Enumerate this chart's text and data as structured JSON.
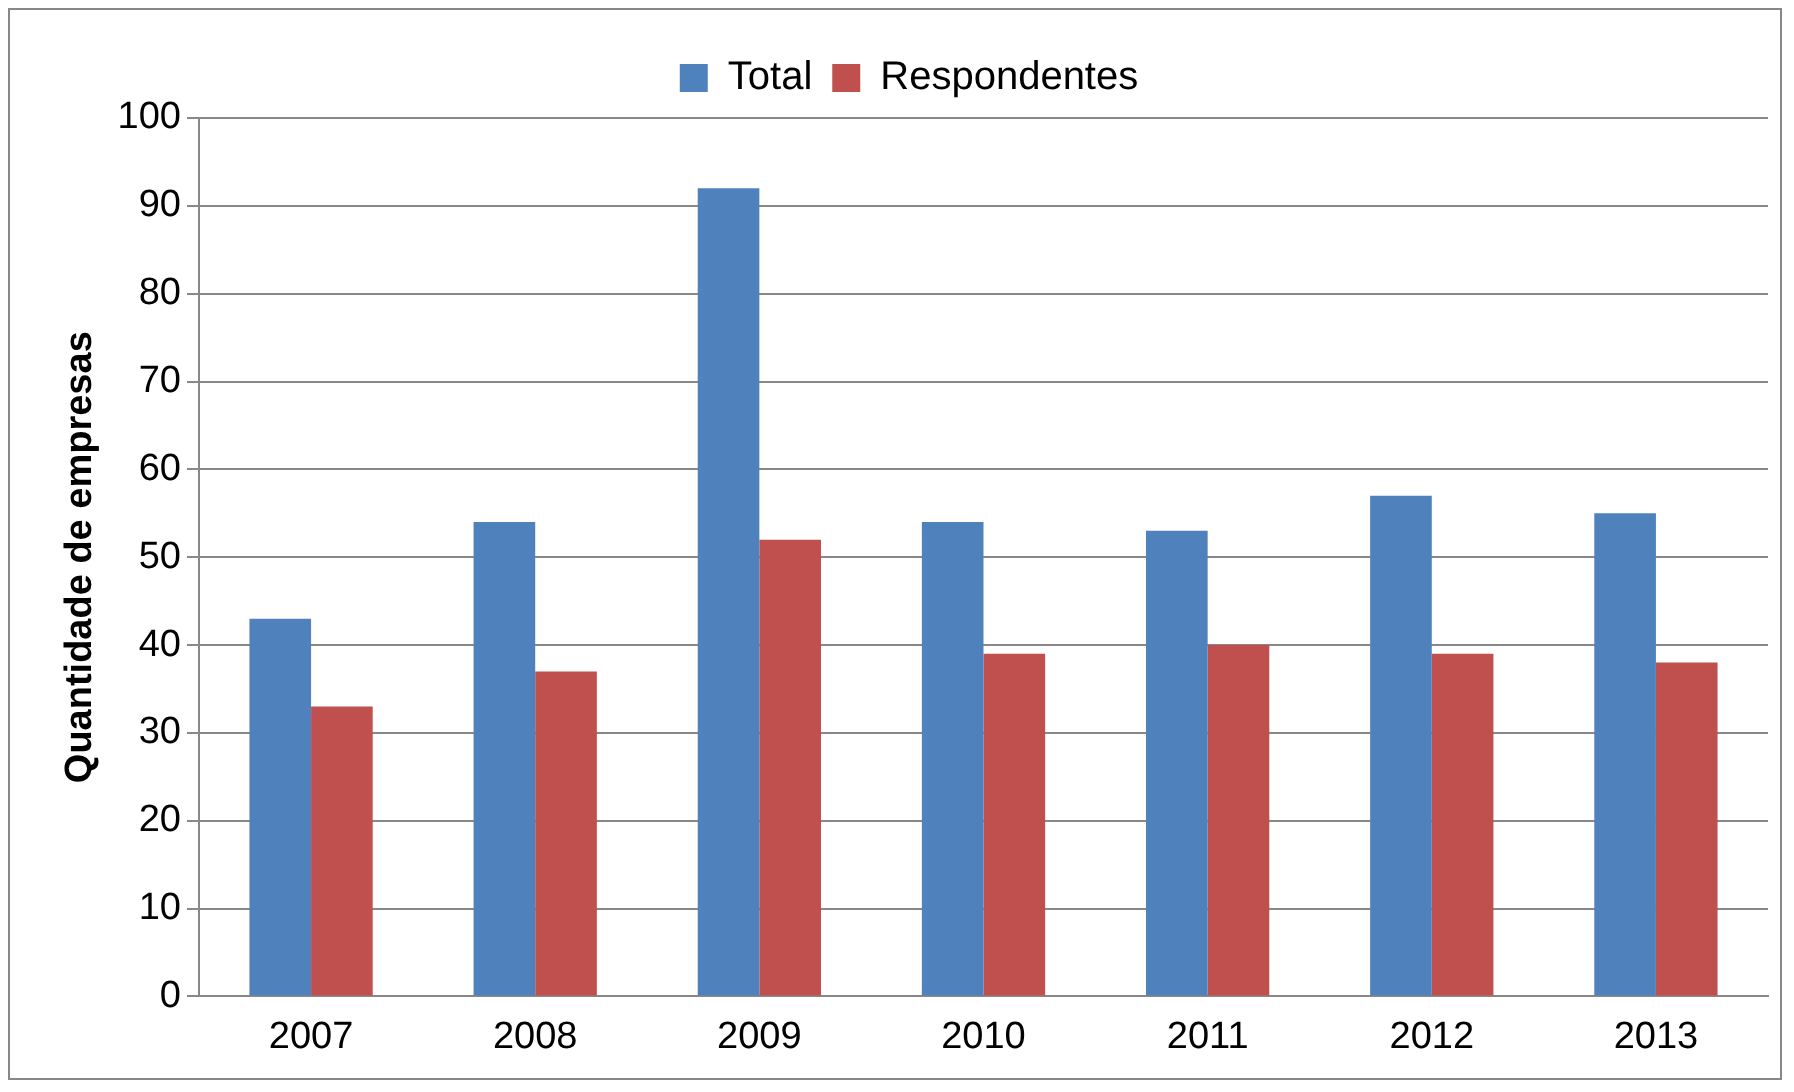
{
  "chart_data": {
    "type": "bar",
    "ylabel": "Quantidade de empresas",
    "categories": [
      "2007",
      "2008",
      "2009",
      "2010",
      "2011",
      "2012",
      "2013"
    ],
    "series": [
      {
        "name": "Total",
        "color": "#4f81bd",
        "values": [
          43,
          54,
          92,
          54,
          53,
          57,
          55
        ]
      },
      {
        "name": "Respondentes",
        "color": "#c0504d",
        "values": [
          33,
          37,
          52,
          39,
          40,
          39,
          38
        ]
      }
    ],
    "ylim": [
      0,
      100
    ],
    "yticks": [
      0,
      10,
      20,
      30,
      40,
      50,
      60,
      70,
      80,
      90,
      100
    ],
    "grid": "y",
    "legend": "top"
  }
}
